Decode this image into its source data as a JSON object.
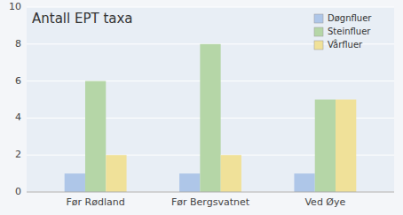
{
  "chart_data": {
    "type": "bar",
    "title": "Antall EPT taxa",
    "categories": [
      "Før Rødland",
      "Før Bergsvatnet",
      "Ved Øye"
    ],
    "series": [
      {
        "name": "Døgnfluer",
        "color": "#aec6e8",
        "values": [
          1,
          1,
          1
        ]
      },
      {
        "name": "Steinfluer",
        "color": "#b5d6a7",
        "values": [
          6,
          8,
          5
        ]
      },
      {
        "name": "Vårfluer",
        "color": "#f0e199",
        "values": [
          2,
          2,
          5
        ]
      }
    ],
    "ylim": [
      0,
      10
    ],
    "yticks": [
      0,
      2,
      4,
      6,
      8,
      10
    ],
    "grid": true,
    "legend": "upper right"
  }
}
